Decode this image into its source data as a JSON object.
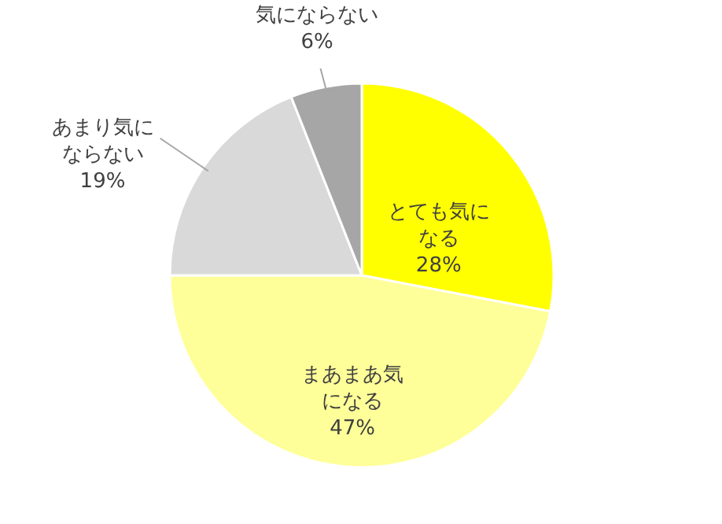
{
  "chart_data": {
    "type": "pie",
    "categories": [
      "とても気になる",
      "まあまあ気になる",
      "あまり気にならない",
      "気にならない"
    ],
    "values": [
      28,
      47,
      19,
      6
    ],
    "value_labels": [
      "28%",
      "47%",
      "19%",
      "6%"
    ],
    "colors": [
      "#ffff00",
      "#ffff99",
      "#d9d9d9",
      "#a6a6a6"
    ]
  }
}
